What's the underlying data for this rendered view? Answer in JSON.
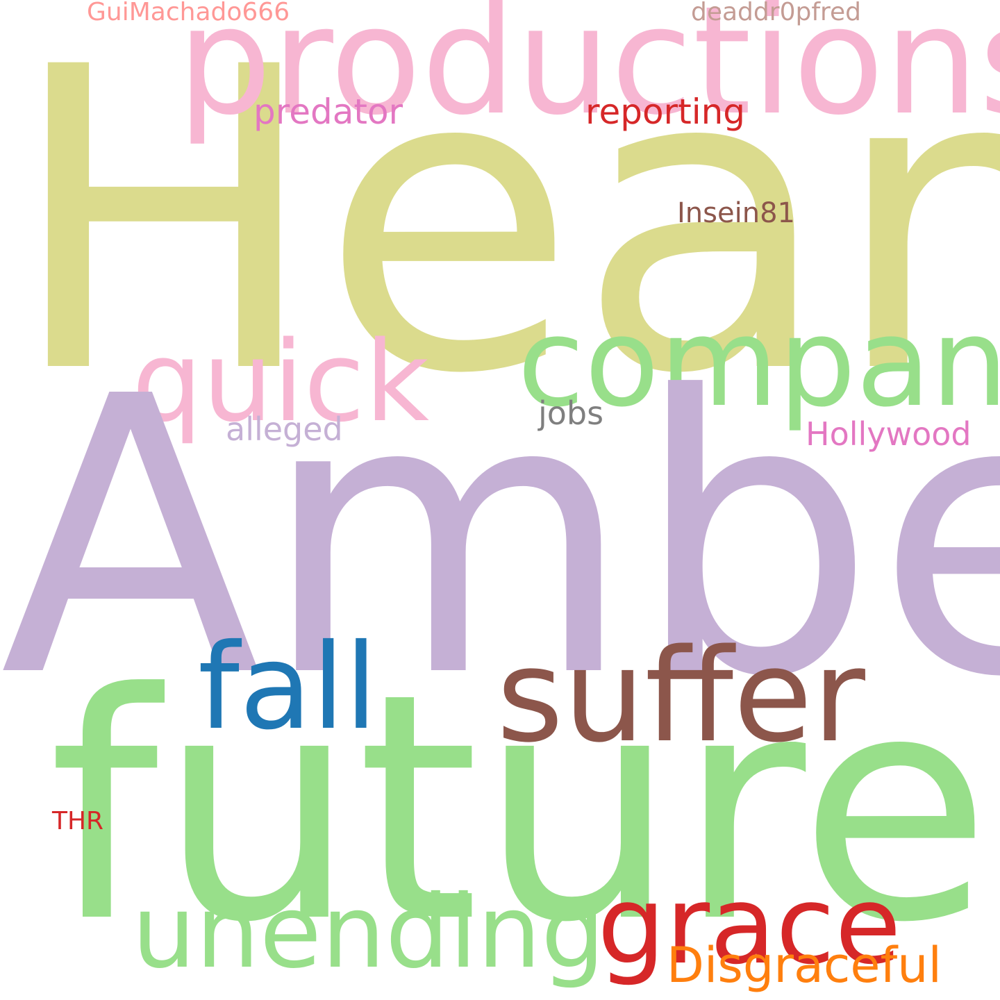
{
  "words": {
    "heard": {
      "text": "Heard",
      "color": "#dbdb8d"
    },
    "amber": {
      "text": "Amber",
      "color": "#c5b0d5"
    },
    "future": {
      "text": "future",
      "color": "#98df8a"
    },
    "productions": {
      "text": "productions",
      "color": "#f7b6d2"
    },
    "company": {
      "text": "company",
      "color": "#98df8a"
    },
    "quick": {
      "text": "quick",
      "color": "#f7b6d2"
    },
    "suffer": {
      "text": "suffer",
      "color": "#8c564b"
    },
    "fall": {
      "text": "fall",
      "color": "#1f77b4"
    },
    "grace": {
      "text": "grace",
      "color": "#d62728"
    },
    "unending": {
      "text": "unending",
      "color": "#98df8a"
    },
    "disgraceful": {
      "text": "Disgraceful",
      "color": "#ff7f0e"
    },
    "predator": {
      "text": "predator",
      "color": "#e377c2"
    },
    "reporting": {
      "text": "reporting",
      "color": "#d62728"
    },
    "insein": {
      "text": "Insein81",
      "color": "#8c564b"
    },
    "jobs": {
      "text": "jobs",
      "color": "#7f7f7f"
    },
    "alleged": {
      "text": "alleged",
      "color": "#c5b0d5"
    },
    "hollywood": {
      "text": "Hollywood",
      "color": "#e377c2"
    },
    "gui": {
      "text": "GuiMachado666",
      "color": "#ff9896"
    },
    "deaddr": {
      "text": "deaddr0pfred",
      "color": "#c49c94"
    },
    "thr": {
      "text": "THR",
      "color": "#d62728"
    }
  }
}
